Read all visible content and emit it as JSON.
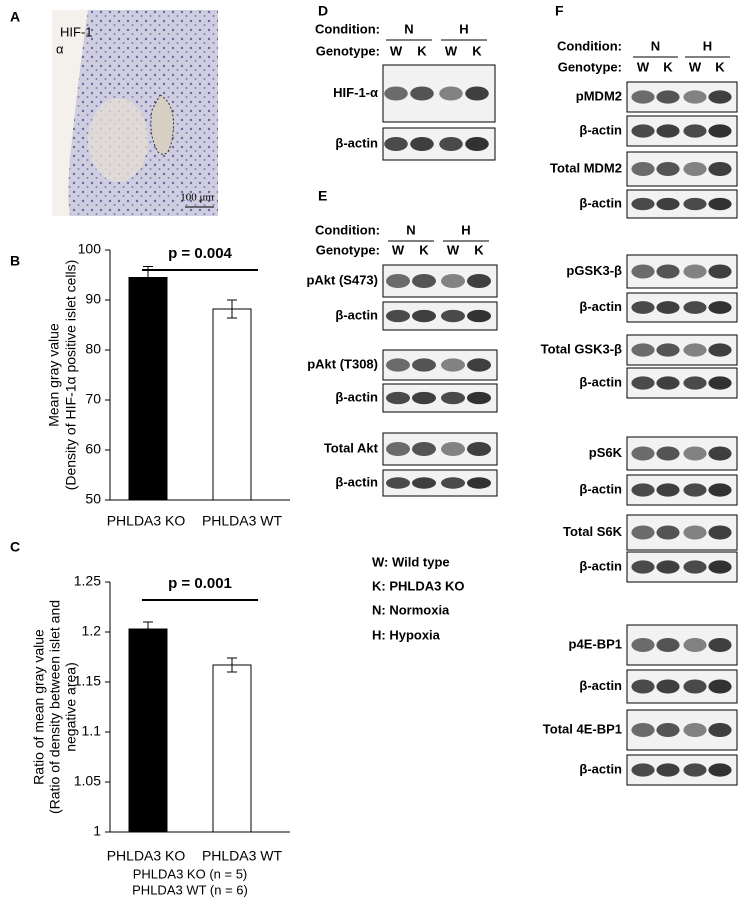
{
  "panel_a": {
    "letter": "A",
    "label": [
      "HIF-1",
      "α"
    ],
    "scale_bar": "100 μm"
  },
  "chart_data": [
    {
      "letter": "B",
      "type": "bar",
      "ylabel": [
        "Mean gray value",
        "(Density of HIF-1α positive islet cells)"
      ],
      "categories": [
        "PHLDA3 KO",
        "PHLDA3 WT"
      ],
      "values": [
        94.5,
        88.2
      ],
      "errors": [
        2.2,
        1.8
      ],
      "colors": [
        "#000000",
        "#ffffff"
      ],
      "ylim": [
        50,
        100
      ],
      "yticks": [
        50,
        60,
        70,
        80,
        90,
        100
      ],
      "annotation": "p = 0.004"
    },
    {
      "letter": "C",
      "type": "bar",
      "ylabel": [
        "Ratio of mean gray value",
        "(Ratio of density between islet and",
        "negative area)"
      ],
      "categories": [
        "PHLDA3 KO",
        "PHLDA3 WT"
      ],
      "values": [
        1.203,
        1.167
      ],
      "errors": [
        0.007,
        0.007
      ],
      "colors": [
        "#000000",
        "#ffffff"
      ],
      "ylim": [
        1,
        1.25
      ],
      "yticks": [
        1,
        1.05,
        1.1,
        1.15,
        1.2,
        1.25
      ],
      "annotation": "p = 0.001",
      "notes": [
        "PHLDA3 KO (n = 5)",
        "PHLDA3 WT (n = 6)"
      ]
    }
  ],
  "panel_d": {
    "letter": "D",
    "condition_label": "Condition:",
    "genotype_label": "Genotype:",
    "conditions": [
      "N",
      "H"
    ],
    "genotypes": [
      "W",
      "K",
      "W",
      "K"
    ],
    "blots": [
      "HIF-1-α",
      "β-actin"
    ]
  },
  "panel_e": {
    "letter": "E",
    "condition_label": "Condition:",
    "genotype_label": "Genotype:",
    "conditions": [
      "N",
      "H"
    ],
    "genotypes": [
      "W",
      "K",
      "W",
      "K"
    ],
    "blots": [
      "pAkt (S473)",
      "β-actin",
      "pAkt (T308)",
      "β-actin",
      "Total Akt",
      "β-actin"
    ]
  },
  "panel_f": {
    "letter": "F",
    "condition_label": "Condition:",
    "genotype_label": "Genotype:",
    "conditions": [
      "N",
      "H"
    ],
    "genotypes": [
      "W",
      "K",
      "W",
      "K"
    ],
    "blots": [
      "pMDM2",
      "β-actin",
      "Total MDM2",
      "β-actin",
      "pGSK3-β",
      "β-actin",
      "Total GSK3-β",
      "β-actin",
      "pS6K",
      "β-actin",
      "Total S6K",
      "β-actin",
      "p4E-BP1",
      "β-actin",
      "Total 4E-BP1",
      "β-actin"
    ]
  },
  "abbreviations": [
    "W: Wild type",
    "K: PHLDA3 KO",
    "N: Normoxia",
    "H: Hypoxia"
  ]
}
